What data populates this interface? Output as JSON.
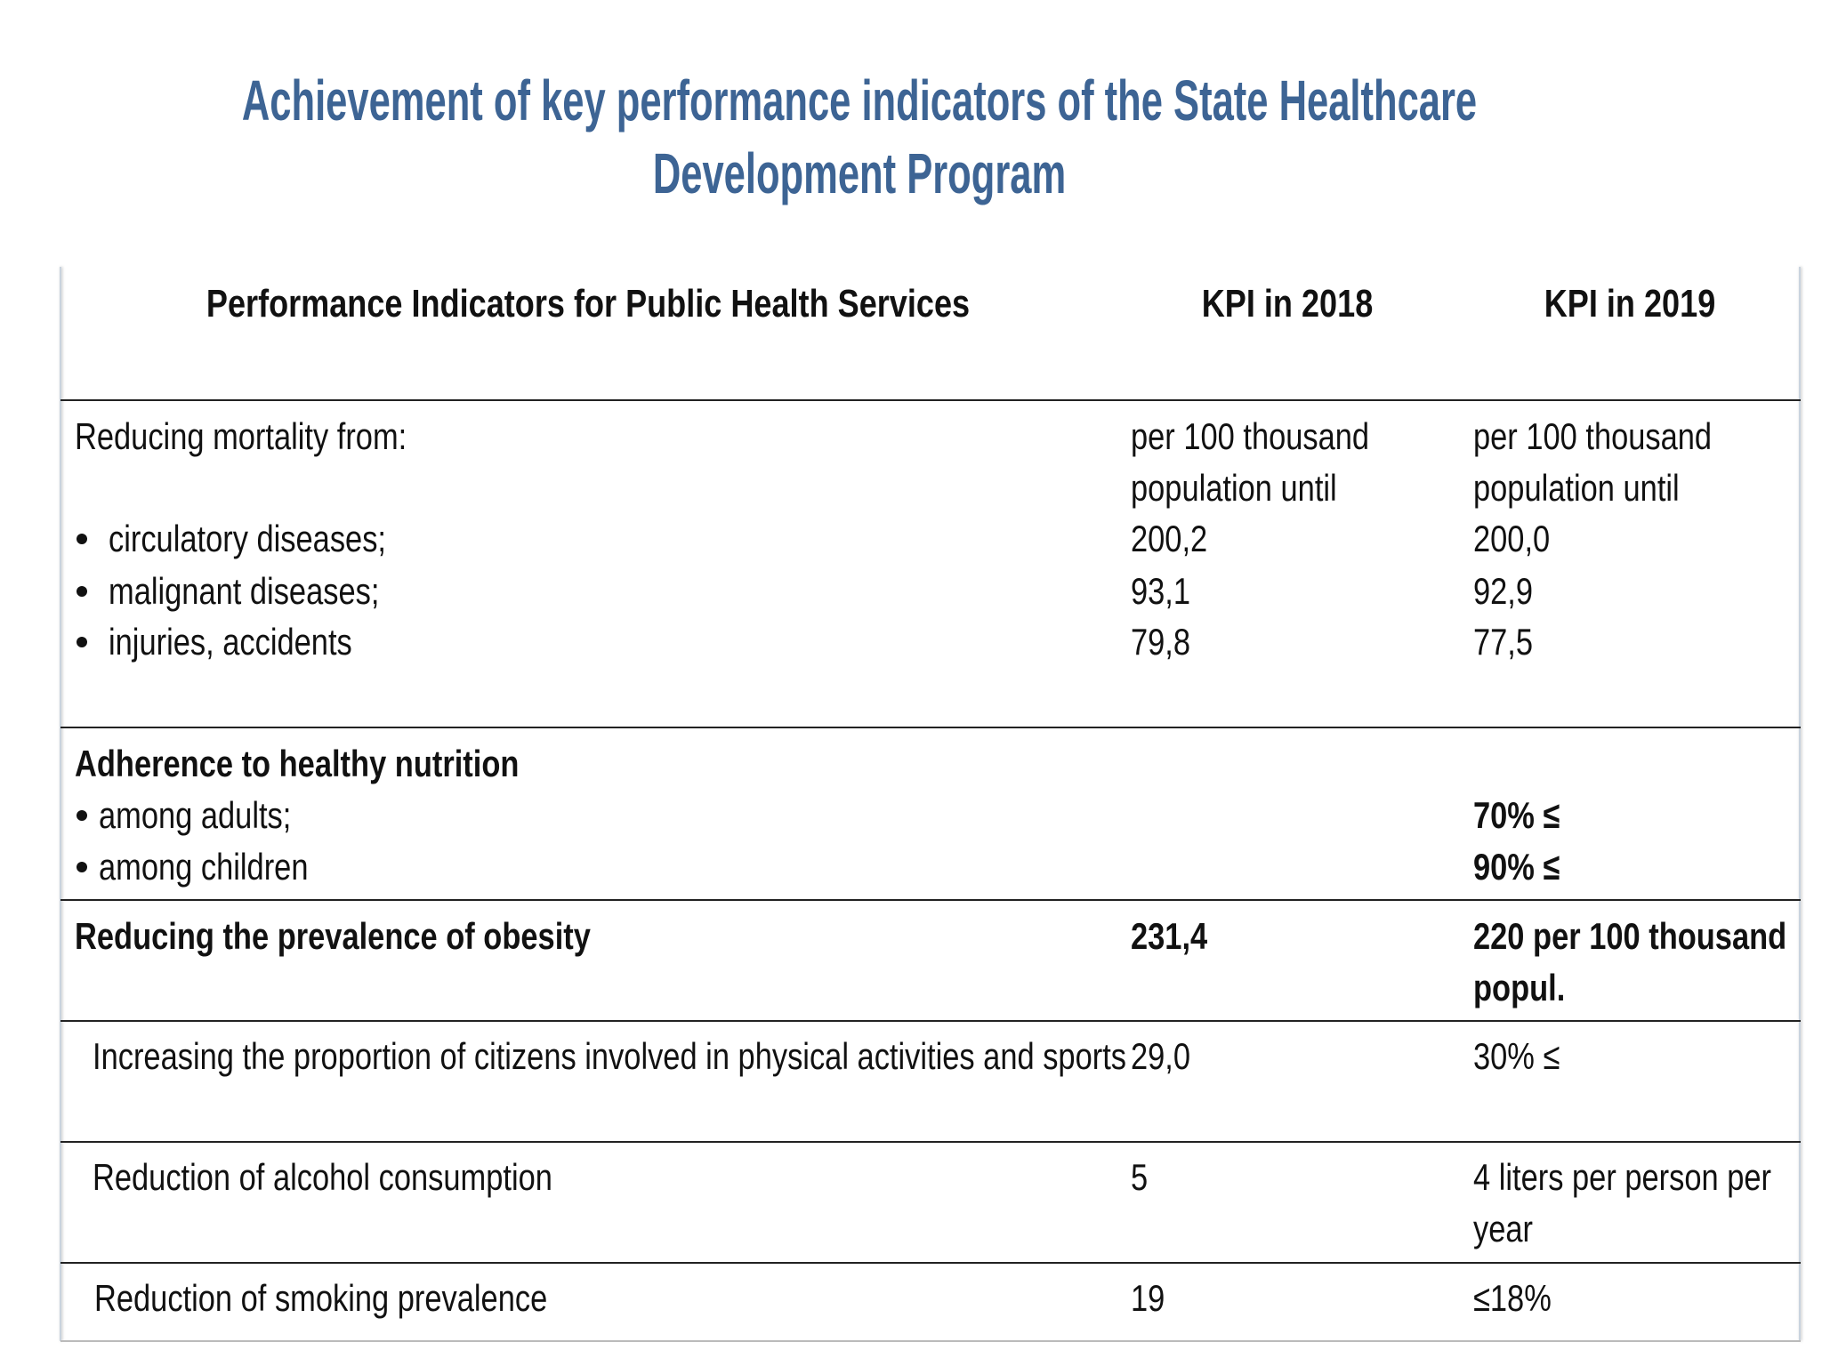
{
  "title": "Achievement of key performance indicators of the State Healthcare Development Program",
  "table": {
    "header": [
      "Performance Indicators for Public Health Services",
      "KPI in 2018",
      "KPI in 2019"
    ],
    "rows": [
      {
        "label": "Reducing mortality from:",
        "items": [
          "circulatory diseases;",
          "malignant diseases;",
          "injuries, accidents"
        ],
        "kpi_2018": {
          "note": "per 100 thousand population until",
          "values": [
            "200,2",
            "93,1",
            "79,8"
          ]
        },
        "kpi_2019": {
          "note": "per 100 thousand population until",
          "values": [
            "200,0",
            "92,9",
            "77,5"
          ]
        }
      },
      {
        "label": "Adherence to healthy nutrition",
        "items": [
          "among adults;",
          "among children"
        ],
        "kpi_2019": {
          "values": [
            "70% ≤",
            "90% ≤"
          ]
        }
      },
      {
        "label": "Reducing the prevalence of obesity",
        "kpi_2018": "231,4",
        "kpi_2019": "220 per 100 thousand popul."
      },
      {
        "label": "Increasing the proportion of citizens involved in physical activities and sports",
        "kpi_2018": "29,0",
        "kpi_2019": "30% ≤"
      },
      {
        "label": "Reduction of alcohol consumption",
        "kpi_2018": "5",
        "kpi_2019": "4 liters per person per year"
      },
      {
        "label": "Reduction of smoking prevalence",
        "kpi_2018": "19",
        "kpi_2019": "≤18%"
      }
    ]
  }
}
